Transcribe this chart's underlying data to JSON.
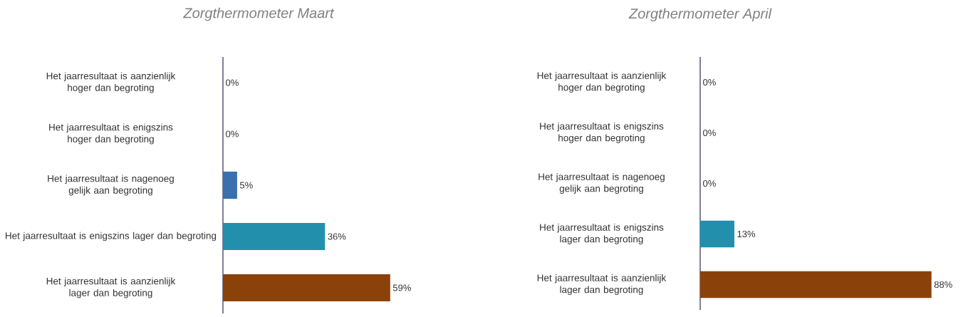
{
  "chart_data": [
    {
      "type": "bar",
      "orientation": "horizontal",
      "title": "Zorgthermometer Maart",
      "categories": [
        "Het jaarresultaat is aanzienlijk hoger dan begroting",
        "Het jaarresultaat is enigszins hoger dan begroting",
        "Het jaarresultaat is nagenoeg gelijk aan begroting",
        "Het jaarresultaat is enigszins lager dan begroting",
        "Het jaarresultaat is aanzienlijk lager dan begroting"
      ],
      "values": [
        0,
        0,
        5,
        36,
        59
      ],
      "value_labels": [
        "0%",
        "0%",
        "5%",
        "36%",
        "59%"
      ],
      "colors": [
        "#3a6fb0",
        "#3a6fb0",
        "#3a6fb0",
        "#2290ad",
        "#8b420a"
      ]
    },
    {
      "type": "bar",
      "orientation": "horizontal",
      "title": "Zorgthermometer April",
      "categories": [
        "Het jaarresultaat is aanzienlijk hoger dan begroting",
        "Het jaarresultaat is enigszins hoger dan begroting",
        "Het jaarresultaat is nagenoeg gelijk aan begroting",
        "Het jaarresultaat is enigszins lager dan begroting",
        "Het jaarresultaat is aanzienlijk lager dan begroting"
      ],
      "values": [
        0,
        0,
        0,
        13,
        88
      ],
      "value_labels": [
        "0%",
        "0%",
        "0%",
        "13%",
        "88%"
      ],
      "colors": [
        "#3a6fb0",
        "#3a6fb0",
        "#3a6fb0",
        "#2290ad",
        "#8b420a"
      ]
    }
  ]
}
